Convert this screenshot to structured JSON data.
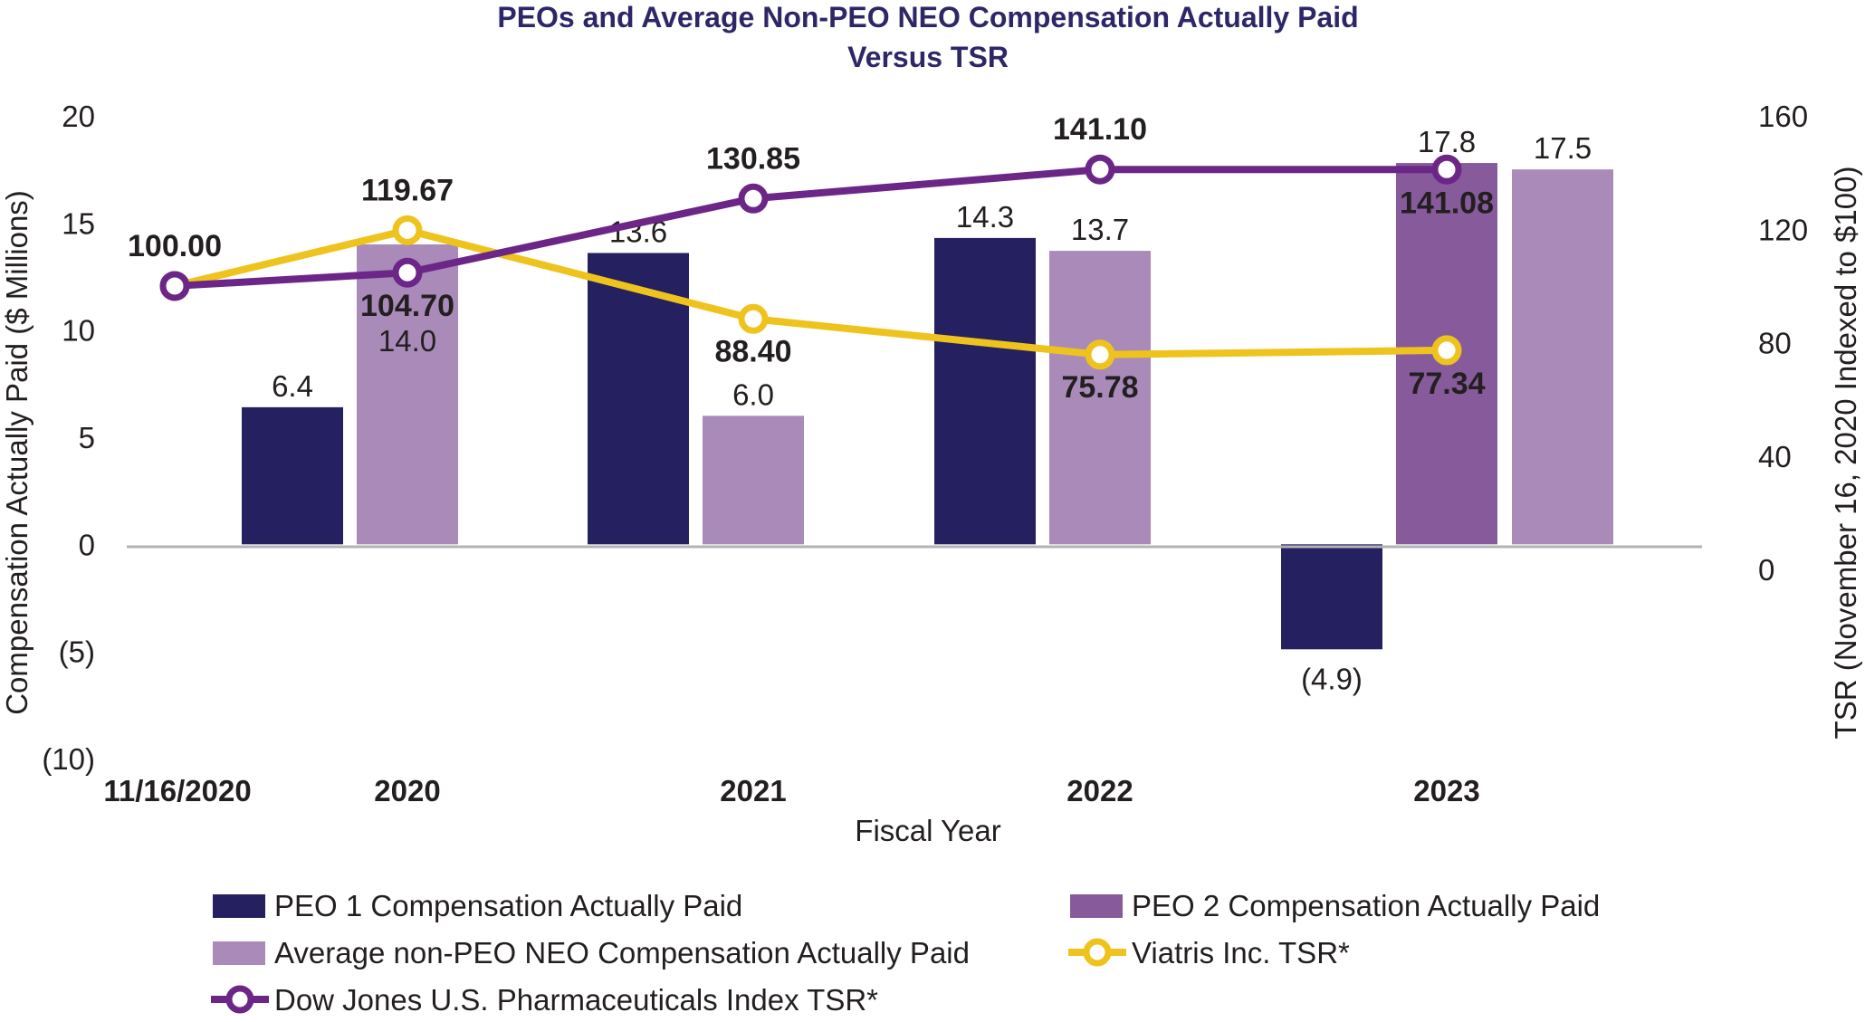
{
  "chart_data": {
    "type": "bar",
    "title": [
      "PEOs and Average Non-PEO NEO Compensation Actually Paid",
      "Versus TSR"
    ],
    "xlabel": "Fiscal Year",
    "ylabel": "Compensation Actually Paid ($ Millions)",
    "y2label": "TSR (November 16, 2020 Indexed to $100)",
    "categories": [
      "11/16/2020",
      "2020",
      "2021",
      "2022",
      "2023"
    ],
    "ylim": [
      -10,
      20
    ],
    "yticks": [
      20,
      15,
      10,
      5,
      0,
      -5,
      -10
    ],
    "ytick_labels": [
      "20",
      "15",
      "10",
      "5",
      "0",
      "(5)",
      "(10)"
    ],
    "y2lim": [
      -66.67,
      160
    ],
    "y2ticks": [
      160,
      120,
      80,
      40,
      0
    ],
    "y2tick_labels": [
      "160",
      "120",
      "80",
      "40",
      "0"
    ],
    "bar_series": [
      {
        "name": "PEO 1 Compensation Actually Paid",
        "color": "#252060",
        "values": [
          null,
          6.4,
          13.6,
          14.3,
          -4.9
        ],
        "labels": [
          null,
          "6.4",
          "13.6",
          "14.3",
          "(4.9)"
        ]
      },
      {
        "name": "PEO 2 Compensation Actually Paid",
        "color": "#875a9b",
        "values": [
          null,
          null,
          null,
          null,
          17.8
        ],
        "labels": [
          null,
          null,
          null,
          null,
          "17.8"
        ]
      },
      {
        "name": "Average non-PEO NEO Compensation Actually Paid",
        "color": "#a98ab9",
        "values": [
          null,
          14.0,
          6.0,
          13.7,
          17.5
        ],
        "labels": [
          null,
          "14.0",
          "6.0",
          "13.7",
          "17.5"
        ]
      }
    ],
    "line_series": [
      {
        "name": "Viatris Inc. TSR*",
        "color": "#efc31d",
        "axis": "right",
        "values": [
          100.0,
          119.67,
          88.4,
          75.78,
          77.34
        ],
        "labels": [
          "",
          "119.67",
          "88.40",
          "75.78",
          "77.34"
        ]
      },
      {
        "name": "Dow Jones U.S. Pharmaceuticals Index TSR*",
        "color": "#6b2688",
        "axis": "right",
        "values": [
          100.0,
          104.7,
          130.85,
          141.1,
          141.08
        ],
        "labels": [
          "100.00",
          "104.70",
          "130.85",
          "141.10",
          "141.08"
        ]
      }
    ],
    "legend": [
      {
        "name": "PEO 1 Compensation Actually Paid",
        "kind": "bar",
        "color": "#252060"
      },
      {
        "name": "PEO 2 Compensation Actually Paid",
        "kind": "bar",
        "color": "#875a9b"
      },
      {
        "name": "Average non-PEO NEO Compensation Actually Paid",
        "kind": "bar",
        "color": "#a98ab9"
      },
      {
        "name": "Viatris Inc. TSR*",
        "kind": "line",
        "color": "#efc31d"
      },
      {
        "name": "Dow Jones U.S. Pharmaceuticals Index TSR*",
        "kind": "line",
        "color": "#6b2688"
      }
    ],
    "legend_position": "bottom"
  }
}
